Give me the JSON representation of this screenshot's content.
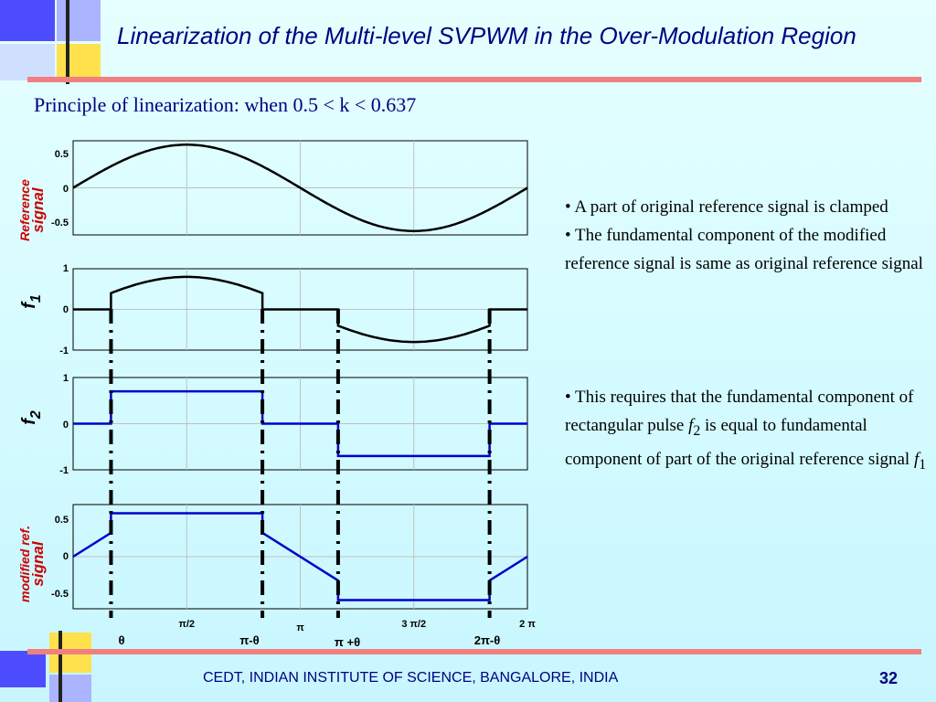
{
  "slide": {
    "title": "Linearization of the Multi-level SVPWM in the Over-Modulation Region",
    "subtitle": "Principle of linearization: when 0.5 < k < 0.637",
    "footer": "CEDT, INDIAN INSTITUTE OF SCIENCE, BANGALORE, INDIA",
    "page_number": "32",
    "colors": {
      "title": "#000080",
      "rule": "#f08080",
      "deco_blue": "#3333ff",
      "deco_yellow": "#ffe14d",
      "series_black": "#000000",
      "series_blue": "#0000cc"
    }
  },
  "bullets": [
    {
      "text": "• A part of original reference signal is clamped"
    },
    {
      "text": "• The fundamental component of the modified reference signal is same as original reference signal"
    },
    {
      "prefix": "• This requires that the fundamental component of rectangular pulse ",
      "sym1": "f",
      "sub1": "2",
      "mid": " is equal to fundamental component of part of the original reference signal ",
      "sym2": "f",
      "sub2": "1"
    }
  ],
  "chart_data": [
    {
      "type": "line",
      "ylabel_lines": [
        "Reference",
        "signal"
      ],
      "yticks": [
        "0.5",
        "0",
        "-0.5"
      ],
      "ylim": [
        -0.6,
        0.6
      ],
      "xlim": [
        0,
        6.2832
      ],
      "formula": "0.55*sin(x)",
      "x": [
        0,
        0.785,
        1.571,
        2.356,
        3.142,
        3.927,
        4.712,
        5.498,
        6.283
      ],
      "y": [
        0,
        0.389,
        0.55,
        0.389,
        0,
        -0.389,
        -0.55,
        -0.389,
        0
      ],
      "color": "#000000"
    },
    {
      "type": "line",
      "ylabel": "f",
      "ylabel_sub": "1",
      "yticks": [
        "1",
        "0",
        "-1"
      ],
      "ylim": [
        -1,
        1
      ],
      "xlim": [
        0,
        6.2832
      ],
      "formula": "0.8*sin(x) for theta<x<pi-theta and pi+theta<x<2pi-theta, else 0",
      "theta": 0.524,
      "x": [
        0,
        0.524,
        0.524,
        1.571,
        2.618,
        2.618,
        3.665,
        3.665,
        4.712,
        5.76,
        5.76,
        6.283
      ],
      "y": [
        0,
        0,
        0.4,
        0.8,
        0.4,
        0,
        0,
        -0.4,
        -0.8,
        -0.4,
        0,
        0
      ],
      "color": "#000000"
    },
    {
      "type": "line",
      "ylabel": "f",
      "ylabel_sub": "2",
      "yticks": [
        "1",
        "0",
        "-1"
      ],
      "ylim": [
        -1,
        1
      ],
      "xlim": [
        0,
        6.2832
      ],
      "x": [
        0,
        0.524,
        0.524,
        2.618,
        2.618,
        3.665,
        3.665,
        5.76,
        5.76,
        6.283
      ],
      "y": [
        0,
        0,
        0.7,
        0.7,
        0,
        0,
        -0.7,
        -0.7,
        0,
        0
      ],
      "color": "#0000cc"
    },
    {
      "type": "line",
      "ylabel_lines": [
        "modified ref.",
        "signal"
      ],
      "yticks": [
        "0.5",
        "0",
        "-0.5"
      ],
      "ylim": [
        -0.6,
        0.6
      ],
      "xlim": [
        0,
        6.2832
      ],
      "x": [
        0,
        0.524,
        0.524,
        2.618,
        2.618,
        3.665,
        3.665,
        5.76,
        5.76,
        6.283
      ],
      "y": [
        0,
        0.275,
        0.5,
        0.5,
        0.275,
        -0.275,
        -0.5,
        -0.5,
        -0.275,
        0
      ],
      "color": "#0000cc",
      "xticks": [
        {
          "x": 1.571,
          "label": "π/2"
        },
        {
          "x": 3.142,
          "label": "π"
        },
        {
          "x": 4.712,
          "label": "3 π/2"
        },
        {
          "x": 6.283,
          "label": "2 π"
        }
      ]
    }
  ],
  "markers": {
    "positions": [
      0.524,
      2.618,
      3.665,
      5.76
    ],
    "labels": [
      "θ",
      "π-θ",
      "π +θ",
      "2π-θ"
    ]
  }
}
